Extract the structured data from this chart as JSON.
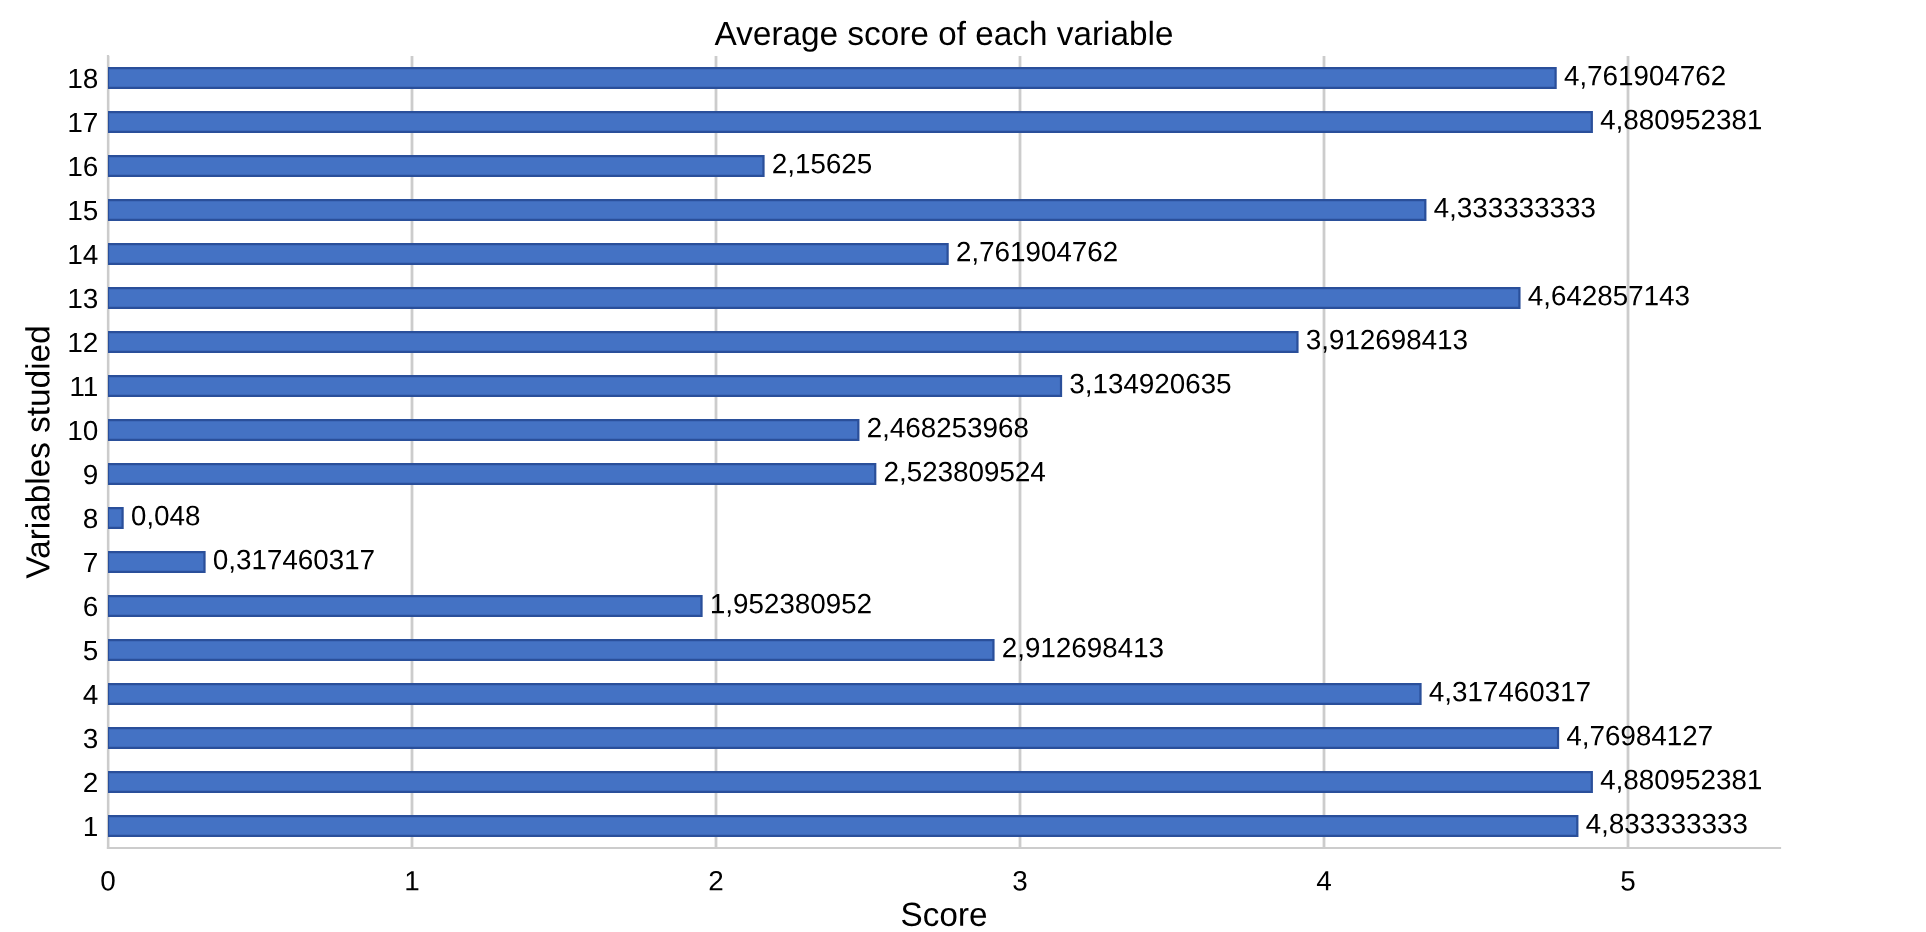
{
  "chart_data": {
    "type": "bar",
    "orientation": "horizontal",
    "title": "Average score of each variable",
    "xlabel": "Score",
    "ylabel": "Variables studied",
    "categories": [
      "18",
      "17",
      "16",
      "15",
      "14",
      "13",
      "12",
      "11",
      "10",
      "9",
      "8",
      "7",
      "6",
      "5",
      "4",
      "3",
      "2",
      "1"
    ],
    "values": [
      4.761904762,
      4.880952381,
      2.15625,
      4.333333333,
      2.761904762,
      4.642857143,
      3.912698413,
      3.134920635,
      2.468253968,
      2.523809524,
      0.048,
      0.317460317,
      1.952380952,
      2.912698413,
      4.317460317,
      4.76984127,
      4.880952381,
      4.833333333
    ],
    "value_labels": [
      "4,761904762",
      "4,880952381",
      "2,15625",
      "4,333333333",
      "2,761904762",
      "4,642857143",
      "3,912698413",
      "3,134920635",
      "2,468253968",
      "2,523809524",
      "0,048",
      "0,317460317",
      "1,952380952",
      "2,912698413",
      "4,317460317",
      "4,76984127",
      "4,880952381",
      "4,833333333"
    ],
    "color": "#4472c4",
    "xlim": [
      0,
      5.5
    ],
    "xticks": [
      0,
      1,
      2,
      3,
      4,
      5
    ],
    "grid": "x",
    "legend": false
  }
}
